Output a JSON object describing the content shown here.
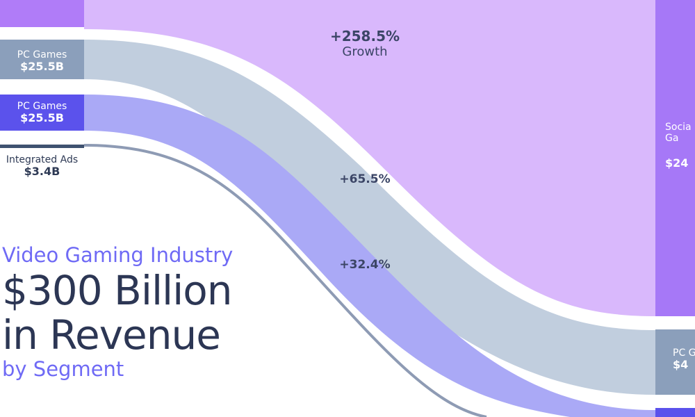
{
  "chart_data": {
    "type": "sankey",
    "title": "Video Gaming Industry",
    "headline": [
      "$300 Billion",
      "in Revenue"
    ],
    "subtitle": "by Segment",
    "source_nodes": [
      {
        "name": "PC Games",
        "value": "$25.5B"
      },
      {
        "name": "PC Games",
        "value": "$25.5B"
      },
      {
        "name": "Integrated Ads",
        "value": "$3.4B"
      }
    ],
    "target_nodes": [
      {
        "name": "Socia\nGa",
        "value": "$24"
      },
      {
        "name": "PC G",
        "value": "$4"
      }
    ],
    "flows": [
      {
        "growth": "+258.5%",
        "growth_word": "Growth"
      },
      {
        "growth": "+65.5%"
      },
      {
        "growth": "+32.4%"
      }
    ]
  },
  "colors": {
    "social_flow": "#d9b8fc",
    "social_node": "#a678f7",
    "pc_flow": "#c1cede",
    "pc_node": "#8b9fbb",
    "console_flow": "#aaa9f6",
    "console_node": "#5b52ec",
    "ads_flow": "#8e9bb4",
    "ads_node": "#3f5270",
    "text_dark": "#2c3654",
    "accent": "#6f6af5"
  }
}
